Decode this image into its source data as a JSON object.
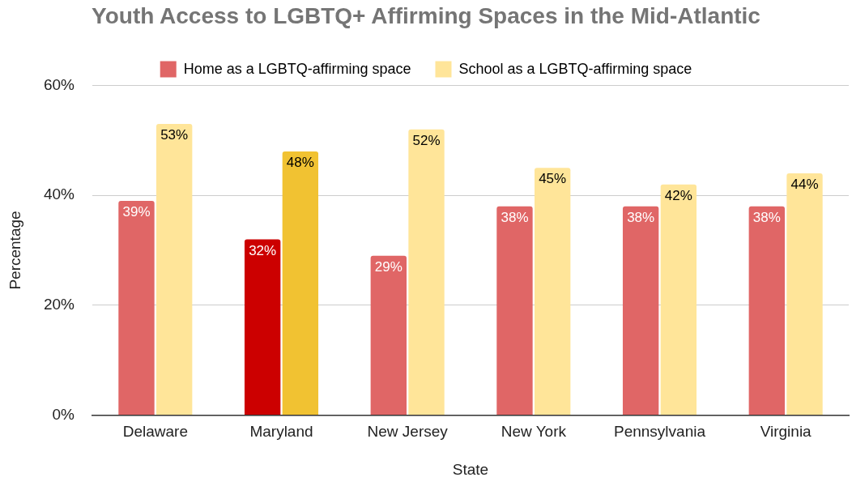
{
  "chart_data": {
    "type": "bar",
    "title": "Youth Access to LGBTQ+ Affirming Spaces in the Mid-Atlantic",
    "xlabel": "State",
    "ylabel": "Percentage",
    "categories": [
      "Delaware",
      "Maryland",
      "New Jersey",
      "New York",
      "Pennsylvania",
      "Virginia"
    ],
    "series": [
      {
        "name": "Home as a LGBTQ-affirming space",
        "color": "#e06666",
        "colors": [
          "#e06666",
          "#cc0000",
          "#e06666",
          "#e06666",
          "#e06666",
          "#e06666"
        ],
        "values": [
          39,
          32,
          29,
          38,
          38,
          38
        ],
        "value_labels": [
          "39%",
          "32%",
          "29%",
          "38%",
          "38%",
          "38%"
        ]
      },
      {
        "name": "School as a LGBTQ-affirming space",
        "color": "#ffe599",
        "colors": [
          "#ffe599",
          "#f1c232",
          "#ffe599",
          "#ffe599",
          "#ffe599",
          "#ffe599"
        ],
        "values": [
          53,
          48,
          52,
          45,
          42,
          44
        ],
        "value_labels": [
          "53%",
          "48%",
          "52%",
          "45%",
          "42%",
          "44%"
        ]
      }
    ],
    "ylim": [
      0,
      60
    ],
    "yticks": [
      {
        "value": 0,
        "label": "0%"
      },
      {
        "value": 20,
        "label": "20%"
      },
      {
        "value": 40,
        "label": "40%"
      },
      {
        "value": 60,
        "label": "60%"
      }
    ],
    "grid": "y",
    "legend": "top"
  }
}
